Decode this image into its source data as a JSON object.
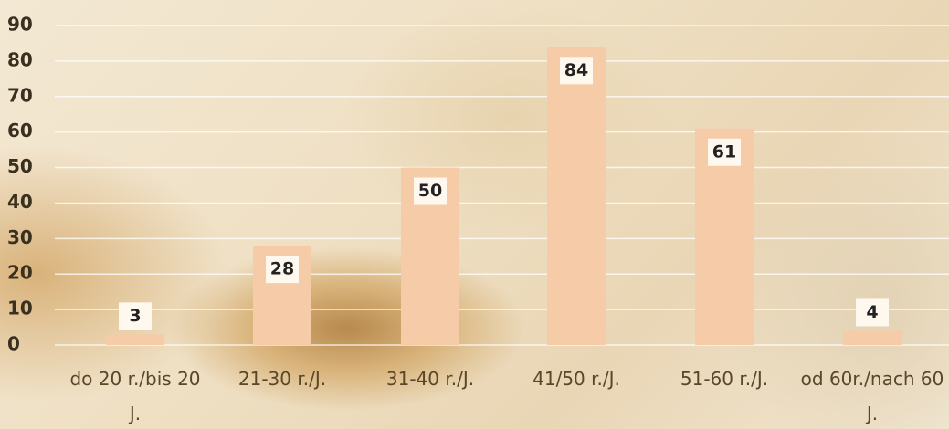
{
  "chart_data": {
    "type": "bar",
    "categories": [
      "do 20 r./bis 20 J.",
      "21-30 r./J.",
      "31-40 r./J.",
      "41/50 r./J.",
      "51-60 r./J.",
      "od 60r./nach 60 J."
    ],
    "values": [
      3,
      28,
      50,
      84,
      61,
      4
    ],
    "color": "#f6cca8",
    "ylim": [
      0,
      90
    ],
    "yticks": [
      0,
      10,
      20,
      30,
      40,
      50,
      60,
      70,
      80,
      90
    ],
    "grid": true
  }
}
